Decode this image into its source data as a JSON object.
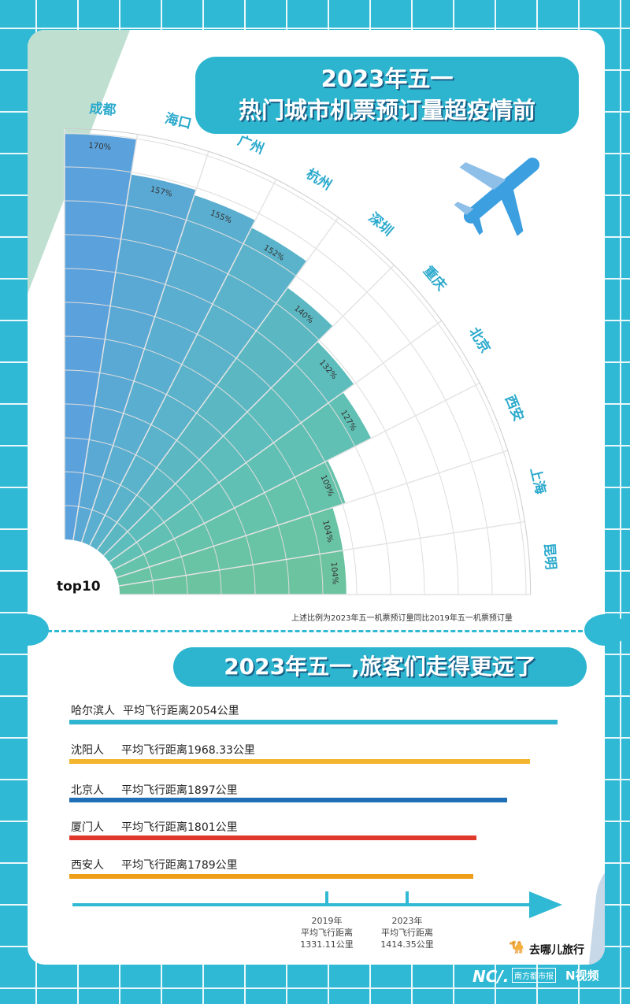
{
  "title": {
    "line1": "2023年五一",
    "line2": "热门城市机票预订量超疫情前"
  },
  "chart_data": {
    "type": "radial-bar",
    "title": "2023年五一热门城市机票预订量超疫情前",
    "categories": [
      "成都",
      "海口",
      "广州",
      "杭州",
      "深圳",
      "重庆",
      "北京",
      "西安",
      "上海",
      "昆明"
    ],
    "values": [
      170,
      157,
      155,
      152,
      140,
      132,
      127,
      109,
      104,
      104
    ],
    "value_labels": [
      "170%",
      "157%",
      "155%",
      "152%",
      "140%",
      "132%",
      "127%",
      "109%",
      "104%",
      "104%"
    ],
    "colors": [
      "#5ba2dc",
      "#5aa9d5",
      "#5aaed0",
      "#5ab3ca",
      "#5bb8c3",
      "#5dbcbc",
      "#61c0b4",
      "#65c2ab",
      "#69c3a5",
      "#6cc3a0"
    ],
    "ylim": [
      0,
      172
    ],
    "label": "top10"
  },
  "note": "上述比例为2023年五一机票预订量同比2019年五一机票预订量",
  "section2": {
    "title": "2023年五一,旅客们走得更远了",
    "rows": [
      {
        "city": "哈尔滨人",
        "text": "平均飞行距离2054公里",
        "km": 2054,
        "color": "#30b5d0"
      },
      {
        "city": "沈阳人",
        "text": "平均飞行距离1968.33公里",
        "km": 1968.33,
        "color": "#f3b52e"
      },
      {
        "city": "北京人",
        "text": "平均飞行距离1897公里",
        "km": 1897,
        "color": "#1e6fb5"
      },
      {
        "city": "厦门人",
        "text": "平均飞行距离1801公里",
        "km": 1801,
        "color": "#e0392b"
      },
      {
        "city": "西安人",
        "text": "平均飞行距离1789公里",
        "km": 1789,
        "color": "#ef9e1a"
      }
    ],
    "ticks": [
      {
        "year": "2019年",
        "label": "平均飞行距离",
        "value": "1331.11公里"
      },
      {
        "year": "2023年",
        "label": "平均飞行距离",
        "value": "1414.35公里"
      }
    ]
  },
  "footer": {
    "qunar": "去哪儿旅行",
    "nd": "NC/.",
    "nd_name": "南方都市报",
    "nvideo": "N视频"
  }
}
